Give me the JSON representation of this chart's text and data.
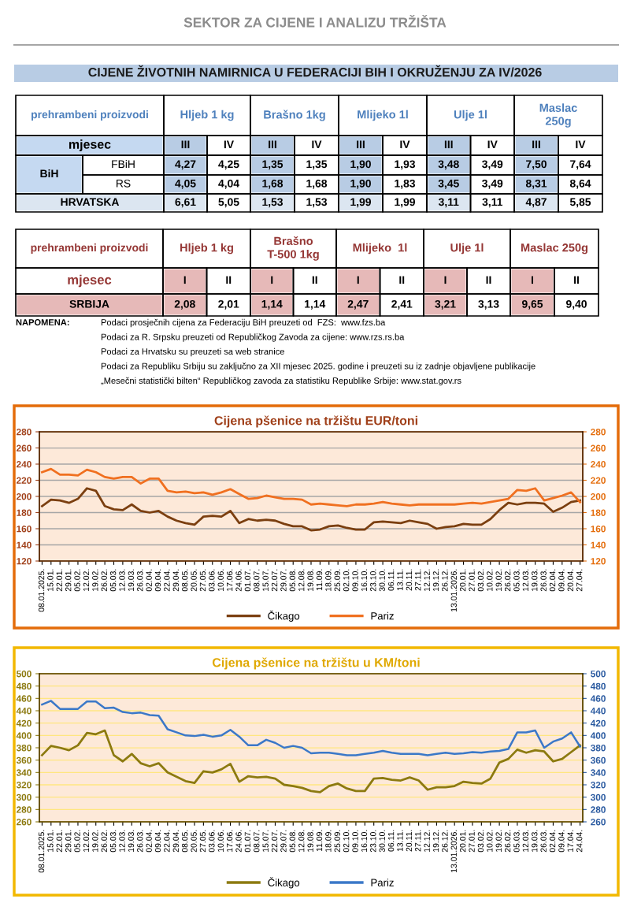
{
  "chart_data": [
    {
      "type": "other",
      "title": "SEKTOR ZA CIJENE I ANALIZU TRŽIŠTA",
      "subtitle": "CIJENE ŽIVOTNIH NAMIRNICA U FEDERACIJI BIH I OKRUŽENJU ZA IV/2026",
      "annotations": [
        "prehrambeni proizvodi",
        "Hljeb 1 kg",
        "Brašno 1kg",
        "Mlijeko 1l",
        "Ulje 1l",
        "Maslac\n250g",
        "mjesec",
        "III",
        "IV",
        "III",
        "IV",
        "III",
        "IV",
        "III",
        "IV",
        "III",
        "IV",
        "BiH",
        "FBiH",
        "4,27",
        "4,25",
        "1,35",
        "1,35",
        "1,90",
        "1,93",
        "3,48",
        "3,49",
        "7,50",
        "7,64",
        "RS",
        "4,05",
        "4,04",
        "1,68",
        "1,68",
        "1,90",
        "1,83",
        "3,45",
        "3,49",
        "8,31",
        "8,64",
        "HRVATSKA",
        "6,61",
        "5,05",
        "1,53",
        "1,53",
        "1,99",
        "1,99",
        "3,11",
        "3,11",
        "4,87",
        "5,85",
        "prehrambeni proizvodi",
        "Hljeb 1 kg",
        "Brašno\nT-500 1kg",
        "Mlijeko  1l",
        "Ulje 1l",
        "Maslac 250g",
        "mjesec",
        "I",
        "II",
        "I",
        "II",
        "I",
        "II",
        "I",
        "II",
        "I",
        "II",
        "SRBIJA",
        "2,08",
        "2,01",
        "1,14",
        "1,14",
        "2,47",
        "2,41",
        "3,21",
        "3,13",
        "9,65",
        "9,40",
        "NAPOMENA:",
        "Podaci prosječnih cijena za Federaciju BiH preuzeti od  FZS:  www.fzs.ba",
        "Podaci za R. Srpsku preuzeti od Republičkog Zavoda za cijene: www.rzs.rs.ba",
        "Podaci za Hrvatsku su preuzeti sa web stranice",
        "Podaci za Republiku Srbiju su zaključno za XII mjesec 2025. godine i preuzeti su iz zadnje objavljene publikacije",
        "„Mesečni statistički bilten“ Republičkog zavoda za statistiku Republike Srbije: www.stat.gov.rs"
      ]
    },
    {
      "type": "line",
      "title": "Cijena pšenice na tržištu EUR/toni",
      "categories": [
        "08.01.2025.",
        "15.01.",
        "22.01.",
        "29.01.",
        "05.02.",
        "12.02.",
        "19.02.",
        "26.02.",
        "05.03.",
        "12.03.",
        "19.03.",
        "26.03.",
        "02.04.",
        "09.04.",
        "22.04.",
        "29.04.",
        "08.05.",
        "20.05.",
        "27.05.",
        "03.06.",
        "10.06.",
        "17.06.",
        "24.06.",
        "01.07.",
        "08.07.",
        "15.07.",
        "22.07.",
        "29.07.",
        "05.08.",
        "12.08.",
        "19.08.",
        "11.09.",
        "18.09.",
        "25.09.",
        "02.10.",
        "09.10.",
        "16.10.",
        "23.10.",
        "30.10.",
        "06.11.",
        "13.11.",
        "20.11.",
        "27.11.",
        "12.12.",
        "19.12.",
        "26.12.",
        "13.01.2026.",
        "20.01.",
        "27.01.",
        "03.02.",
        "10.02.",
        "19.02.",
        "26.02.",
        "05.03.",
        "12.03.",
        "19.03.",
        "26.03.",
        "02.04.",
        "09.04.",
        "20.04.",
        "27.04."
      ],
      "series": [
        {
          "name": "Čikago",
          "color": "#7b3f10",
          "values": [
            188,
            196,
            195,
            192,
            197,
            210,
            207,
            188,
            184,
            183,
            190,
            182,
            180,
            182,
            175,
            170,
            167,
            165,
            175,
            176,
            175,
            182,
            167,
            172,
            170,
            171,
            170,
            166,
            163,
            163,
            158,
            159,
            163,
            164,
            161,
            159,
            159,
            168,
            169,
            168,
            167,
            170,
            168,
            166,
            160,
            162,
            163,
            166,
            165,
            165,
            172,
            183,
            192,
            190,
            192,
            192,
            191,
            181,
            186,
            193,
            195
          ]
        },
        {
          "name": "Pariz",
          "color": "#f07020",
          "values": [
            230,
            234,
            227,
            227,
            226,
            233,
            230,
            224,
            222,
            224,
            224,
            216,
            222,
            222,
            207,
            205,
            206,
            204,
            205,
            202,
            205,
            209,
            203,
            197,
            198,
            201,
            199,
            197,
            197,
            196,
            190,
            191,
            190,
            189,
            188,
            190,
            190,
            191,
            193,
            191,
            190,
            189,
            190,
            190,
            190,
            190,
            190,
            191,
            192,
            191,
            193,
            195,
            197,
            208,
            207,
            210,
            195,
            198,
            201,
            205,
            193
          ]
        }
      ],
      "ylim": [
        120,
        280
      ],
      "yticks": [
        120,
        140,
        160,
        180,
        200,
        220,
        240,
        260,
        280
      ],
      "y2lim": [
        120,
        280
      ],
      "y2ticks": [
        120,
        140,
        160,
        180,
        200,
        220,
        240,
        260,
        280
      ],
      "grid": "y",
      "legend": "bottom"
    },
    {
      "type": "line",
      "title": "Cijena pšenice na tržištu u KM/toni",
      "categories": [
        "08.01.2025.",
        "15.01.",
        "22.01.",
        "29.01.",
        "05.02.",
        "12.02.",
        "19.02.",
        "26.02.",
        "05.03.",
        "12.03.",
        "19.03.",
        "26.03.",
        "02.04.",
        "09.04.",
        "22.04.",
        "29.04.",
        "08.05.",
        "20.05.",
        "27.05.",
        "03.06.",
        "10.06.",
        "17.06.",
        "24.06.",
        "01.07.",
        "08.07.",
        "15.07.",
        "22.07.",
        "29.07.",
        "05.08.",
        "12.08.",
        "19.08.",
        "11.09.",
        "18.09.",
        "25.09.",
        "02.10.",
        "09.10.",
        "16.10.",
        "23.10.",
        "30.10.",
        "06.11.",
        "13.11.",
        "20.11.",
        "27.11.",
        "12.12.",
        "19.12.",
        "26.12.",
        "13.01.2026.",
        "20.01.",
        "27.01.",
        "03.02.",
        "10.02.",
        "19.02.",
        "26.02.",
        "05.03.",
        "12.03.",
        "19.03.",
        "26.03.",
        "02.04.",
        "09.04.",
        "17.04.",
        "24.04."
      ],
      "series": [
        {
          "name": "Čikago",
          "color": "#8c7a10",
          "values": [
            368,
            383,
            380,
            376,
            384,
            404,
            402,
            408,
            368,
            358,
            370,
            355,
            350,
            355,
            340,
            333,
            326,
            323,
            342,
            340,
            345,
            354,
            325,
            334,
            332,
            333,
            330,
            320,
            318,
            315,
            310,
            308,
            318,
            322,
            314,
            310,
            310,
            330,
            331,
            328,
            327,
            332,
            327,
            312,
            316,
            316,
            318,
            325,
            323,
            322,
            330,
            356,
            362,
            377,
            372,
            376,
            374,
            358,
            362,
            373,
            384
          ]
        },
        {
          "name": "Pariz",
          "color": "#3b78c8",
          "axis": "y2",
          "values": [
            450,
            456,
            443,
            443,
            443,
            455,
            455,
            444,
            445,
            438,
            436,
            437,
            433,
            432,
            410,
            405,
            400,
            399,
            401,
            398,
            400,
            409,
            398,
            384,
            384,
            393,
            388,
            380,
            383,
            380,
            371,
            372,
            372,
            370,
            368,
            368,
            370,
            372,
            375,
            372,
            370,
            370,
            370,
            368,
            370,
            372,
            370,
            371,
            373,
            372,
            374,
            375,
            378,
            405,
            405,
            408,
            380,
            390,
            395,
            405,
            382
          ]
        }
      ],
      "ylim": [
        260,
        500
      ],
      "yticks": [
        260,
        280,
        300,
        320,
        340,
        360,
        380,
        400,
        420,
        440,
        460,
        480,
        500
      ],
      "y2lim": [
        260,
        500
      ],
      "y2ticks": [
        260,
        280,
        300,
        320,
        340,
        360,
        380,
        400,
        420,
        440,
        460,
        480,
        500
      ],
      "grid": "y",
      "legend": "bottom"
    }
  ]
}
